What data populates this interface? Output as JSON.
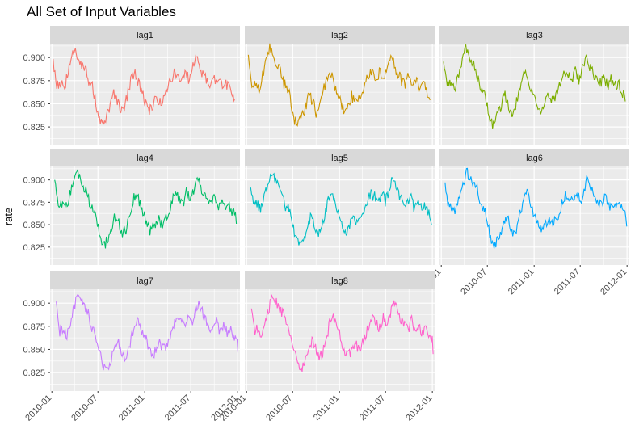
{
  "title": "All Set of Input Variables",
  "ylabel": "rate",
  "colors": {
    "panel_bg": "#ebebeb",
    "strip_bg": "#d9d9d9",
    "grid": "#ffffff",
    "tick": "#333333"
  },
  "chart_data": {
    "type": "line",
    "layout": "facet-wrap 3 columns",
    "x_ticks": [
      "2010-01",
      "2010-07",
      "2011-01",
      "2011-07",
      "2012-01"
    ],
    "y_ticks": [
      "0.825",
      "0.850",
      "0.875",
      "0.900"
    ],
    "xlim": [
      "2009-12-25",
      "2012-01-10"
    ],
    "ylim": [
      0.805,
      0.915
    ],
    "grid": true,
    "legend": "none",
    "shared_series": {
      "x": [
        "2010-01-04",
        "2010-01-18",
        "2010-02-01",
        "2010-02-15",
        "2010-03-01",
        "2010-03-15",
        "2010-03-29",
        "2010-04-12",
        "2010-04-26",
        "2010-05-10",
        "2010-05-24",
        "2010-06-07",
        "2010-06-21",
        "2010-07-05",
        "2010-07-19",
        "2010-08-02",
        "2010-08-16",
        "2010-08-30",
        "2010-09-13",
        "2010-09-27",
        "2010-10-11",
        "2010-10-25",
        "2010-11-08",
        "2010-11-22",
        "2010-12-06",
        "2010-12-20",
        "2011-01-03",
        "2011-01-17",
        "2011-01-31",
        "2011-02-14",
        "2011-02-28",
        "2011-03-14",
        "2011-03-28",
        "2011-04-11",
        "2011-04-25",
        "2011-05-09",
        "2011-05-23",
        "2011-06-06",
        "2011-06-20",
        "2011-07-04",
        "2011-07-18",
        "2011-08-01",
        "2011-08-15",
        "2011-08-29",
        "2011-09-12",
        "2011-09-26",
        "2011-10-10",
        "2011-10-24",
        "2011-11-07",
        "2011-11-21",
        "2011-12-05",
        "2011-12-19"
      ],
      "values": [
        0.897,
        0.87,
        0.873,
        0.866,
        0.88,
        0.895,
        0.91,
        0.902,
        0.893,
        0.889,
        0.871,
        0.868,
        0.851,
        0.832,
        0.827,
        0.836,
        0.846,
        0.86,
        0.853,
        0.84,
        0.845,
        0.862,
        0.878,
        0.884,
        0.872,
        0.863,
        0.85,
        0.842,
        0.849,
        0.858,
        0.851,
        0.855,
        0.864,
        0.877,
        0.884,
        0.881,
        0.872,
        0.887,
        0.876,
        0.888,
        0.902,
        0.891,
        0.882,
        0.875,
        0.872,
        0.882,
        0.869,
        0.876,
        0.868,
        0.872,
        0.864,
        0.857
      ]
    },
    "series": [
      {
        "name": "lag1",
        "color": "#F8766D",
        "offset": 1
      },
      {
        "name": "lag2",
        "color": "#CD9600",
        "offset": 2
      },
      {
        "name": "lag3",
        "color": "#7CAE00",
        "offset": 3
      },
      {
        "name": "lag4",
        "color": "#00BE67",
        "offset": 4
      },
      {
        "name": "lag5",
        "color": "#00BFC4",
        "offset": 5
      },
      {
        "name": "lag6",
        "color": "#00A9FF",
        "offset": 6
      },
      {
        "name": "lag7",
        "color": "#C77CFF",
        "offset": 7
      },
      {
        "name": "lag8",
        "color": "#FF61CC",
        "offset": 8
      }
    ]
  }
}
